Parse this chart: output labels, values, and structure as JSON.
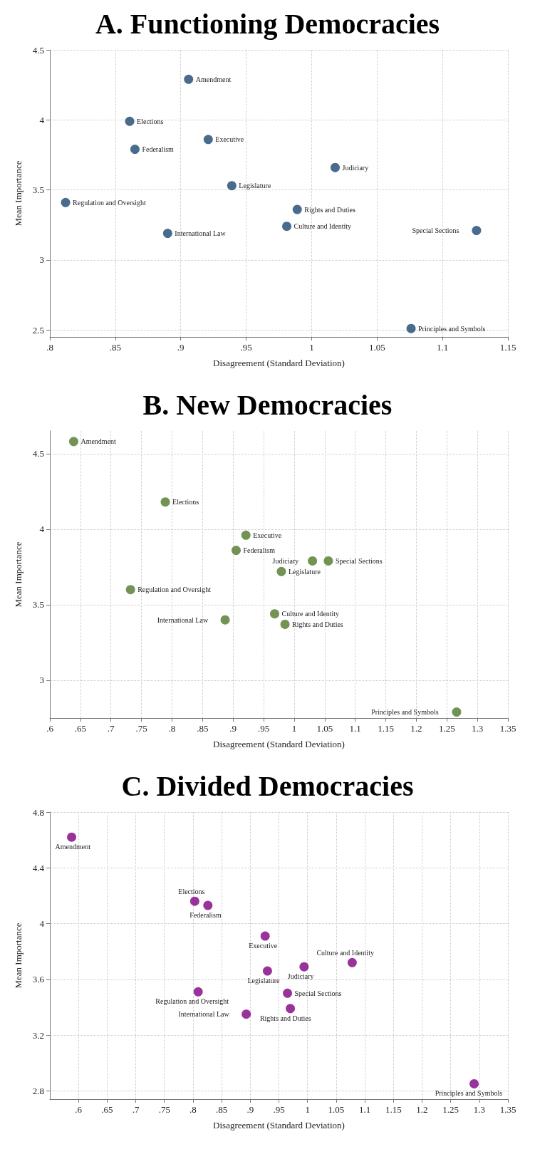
{
  "chart_data": [
    {
      "type": "scatter",
      "title": "A. Functioning Democracies",
      "xlabel": "Disagreement (Standard Deviation)",
      "ylabel": "Mean Importance",
      "grid": true,
      "marker": "circle",
      "xlim": [
        0.8,
        1.15
      ],
      "ylim": [
        2.45,
        4.5
      ],
      "xticks": [
        {
          "value": 0.8,
          "label": ".8"
        },
        {
          "value": 0.85,
          "label": ".85"
        },
        {
          "value": 0.9,
          "label": ".9"
        },
        {
          "value": 0.95,
          "label": ".95"
        },
        1,
        1.05,
        1.1,
        1.15
      ],
      "yticks": [
        2.5,
        3,
        3.5,
        4,
        4.5
      ],
      "series": [
        {
          "color": "#1b4671",
          "x": [
            0.906,
            0.861,
            0.921,
            0.865,
            1.018,
            0.939,
            0.812,
            0.989,
            0.981,
            0.89,
            1.126,
            1.076
          ],
          "values": [
            4.29,
            3.99,
            3.86,
            3.79,
            3.66,
            3.53,
            3.41,
            3.36,
            3.24,
            3.19,
            3.21,
            2.51
          ]
        }
      ],
      "annotations": [
        {
          "text": "Amendment",
          "x": 0.906,
          "y": 4.29
        },
        {
          "text": "Elections",
          "x": 0.861,
          "y": 3.99
        },
        {
          "text": "Executive",
          "x": 0.921,
          "y": 3.86
        },
        {
          "text": "Federalism",
          "x": 0.865,
          "y": 3.79
        },
        {
          "text": "Judiciary",
          "x": 1.018,
          "y": 3.66
        },
        {
          "text": "Legislature",
          "x": 0.939,
          "y": 3.53
        },
        {
          "text": "Regulation and Oversight",
          "x": 0.812,
          "y": 3.41
        },
        {
          "text": "Rights and Duties",
          "x": 0.989,
          "y": 3.36
        },
        {
          "text": "Culture and Identity",
          "x": 0.981,
          "y": 3.24
        },
        {
          "text": "International Law",
          "x": 0.89,
          "y": 3.19
        },
        {
          "text": "Special Sections",
          "x": 1.126,
          "y": 3.21
        },
        {
          "text": "Principles and Symbols",
          "x": 1.076,
          "y": 2.51
        }
      ]
    },
    {
      "type": "scatter",
      "title": "B. New Democracies",
      "xlabel": "Disagreement (Standard Deviation)",
      "ylabel": "Mean Importance",
      "grid": true,
      "marker": "circle",
      "xlim": [
        0.6,
        1.35
      ],
      "ylim": [
        2.75,
        4.65
      ],
      "xticks": [
        {
          "value": 0.6,
          "label": ".6"
        },
        {
          "value": 0.65,
          "label": ".65"
        },
        {
          "value": 0.7,
          "label": ".7"
        },
        {
          "value": 0.75,
          "label": ".75"
        },
        {
          "value": 0.8,
          "label": ".8"
        },
        {
          "value": 0.85,
          "label": ".85"
        },
        {
          "value": 0.9,
          "label": ".9"
        },
        {
          "value": 0.95,
          "label": ".95"
        },
        1,
        1.05,
        1.1,
        1.15,
        1.2,
        1.25,
        1.3,
        1.35
      ],
      "yticks": [
        3,
        3.5,
        4,
        4.5
      ],
      "series": [
        {
          "color": "#50782b",
          "x": [
            0.639,
            0.789,
            0.921,
            0.905,
            1.03,
            1.056,
            0.979,
            0.732,
            0.968,
            0.887,
            0.985,
            1.266
          ],
          "values": [
            4.58,
            4.18,
            3.96,
            3.86,
            3.79,
            3.79,
            3.72,
            3.6,
            3.44,
            3.4,
            3.37,
            2.79
          ]
        }
      ],
      "annotations": [
        {
          "text": "Amendment",
          "x": 0.639,
          "y": 4.58
        },
        {
          "text": "Elections",
          "x": 0.789,
          "y": 4.18
        },
        {
          "text": "Executive",
          "x": 0.921,
          "y": 3.96
        },
        {
          "text": "Federalism",
          "x": 0.905,
          "y": 3.86
        },
        {
          "text": "Judiciary",
          "x": 1.03,
          "y": 3.79
        },
        {
          "text": "Special Sections",
          "x": 1.056,
          "y": 3.79
        },
        {
          "text": "Legislature",
          "x": 0.979,
          "y": 3.72
        },
        {
          "text": "Regulation and Oversight",
          "x": 0.732,
          "y": 3.6
        },
        {
          "text": "Culture and Identity",
          "x": 0.968,
          "y": 3.44
        },
        {
          "text": "International Law",
          "x": 0.887,
          "y": 3.4
        },
        {
          "text": "Rights and Duties",
          "x": 0.985,
          "y": 3.37
        },
        {
          "text": "Principles and Symbols",
          "x": 1.266,
          "y": 2.79
        }
      ]
    },
    {
      "type": "scatter",
      "title": "C. Divided Democracies",
      "xlabel": "Disagreement (Standard Deviation)",
      "ylabel": "Mean Importance",
      "grid": true,
      "marker": "circle",
      "xlim": [
        0.55,
        1.35
      ],
      "ylim": [
        2.74,
        4.8
      ],
      "xticks": [
        {
          "value": 0.6,
          "label": ".6"
        },
        {
          "value": 0.65,
          "label": ".65"
        },
        {
          "value": 0.7,
          "label": ".7"
        },
        {
          "value": 0.75,
          "label": ".75"
        },
        {
          "value": 0.8,
          "label": ".8"
        },
        {
          "value": 0.85,
          "label": ".85"
        },
        {
          "value": 0.9,
          "label": ".9"
        },
        {
          "value": 0.95,
          "label": ".95"
        },
        1,
        1.05,
        1.1,
        1.15,
        1.2,
        1.25,
        1.3,
        1.35
      ],
      "yticks": [
        2.8,
        3.2,
        3.6,
        4,
        4.4,
        4.8
      ],
      "series": [
        {
          "color": "#800080",
          "x": [
            0.588,
            0.803,
            0.826,
            0.926,
            0.93,
            0.994,
            1.078,
            0.809,
            0.965,
            0.97,
            0.893,
            1.291
          ],
          "values": [
            4.62,
            4.16,
            4.13,
            3.91,
            3.66,
            3.69,
            3.72,
            3.51,
            3.5,
            3.39,
            3.35,
            2.85
          ]
        }
      ],
      "annotations": [
        {
          "text": "Amendment",
          "x": 0.588,
          "y": 4.62
        },
        {
          "text": "Elections",
          "x": 0.803,
          "y": 4.16
        },
        {
          "text": "Federalism",
          "x": 0.826,
          "y": 4.13
        },
        {
          "text": "Executive",
          "x": 0.926,
          "y": 3.91
        },
        {
          "text": "Legislature",
          "x": 0.93,
          "y": 3.66
        },
        {
          "text": "Judiciary",
          "x": 0.994,
          "y": 3.69
        },
        {
          "text": "Culture and Identity",
          "x": 1.078,
          "y": 3.72
        },
        {
          "text": "Regulation and Oversight",
          "x": 0.809,
          "y": 3.51
        },
        {
          "text": "Special Sections",
          "x": 0.965,
          "y": 3.5
        },
        {
          "text": "Rights and Duties",
          "x": 0.97,
          "y": 3.39
        },
        {
          "text": "International Law",
          "x": 0.893,
          "y": 3.35
        },
        {
          "text": "Principles and Symbols",
          "x": 1.291,
          "y": 2.85
        }
      ]
    }
  ]
}
